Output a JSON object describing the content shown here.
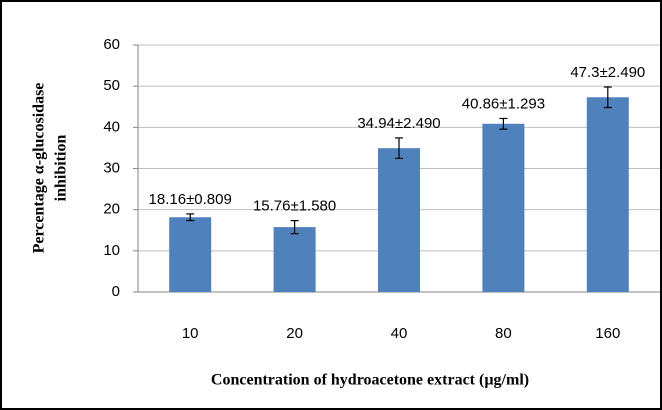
{
  "chart_data": {
    "type": "bar",
    "xlabel": "Concentration of hydroacetone extract (µg/ml)",
    "ylabel": [
      "Percentage α-glucosidase",
      "inhibition"
    ],
    "categories": [
      "10",
      "20",
      "40",
      "80",
      "160"
    ],
    "values": [
      18.16,
      15.76,
      34.94,
      40.86,
      47.3
    ],
    "errors": [
      0.809,
      1.58,
      2.49,
      1.293,
      2.49
    ],
    "value_labels": [
      "18.16±0.809",
      "15.76±1.580",
      "34.94±2.490",
      "40.86±1.293",
      "47.3±2.490"
    ],
    "color": "#4f81bd",
    "ylim": [
      0,
      60
    ],
    "yticks": [
      0,
      10,
      20,
      30,
      40,
      50,
      60
    ],
    "grid": true
  }
}
